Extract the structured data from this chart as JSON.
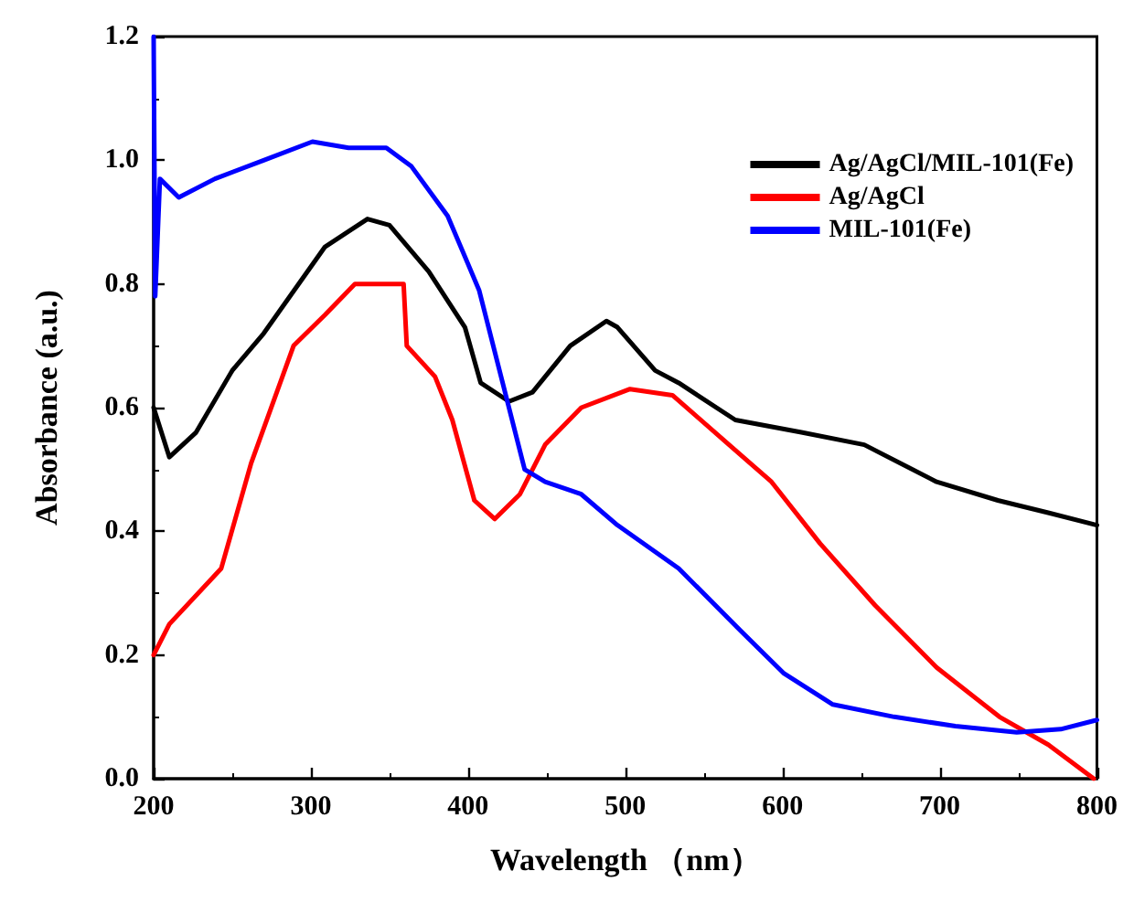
{
  "chart_data": {
    "type": "line",
    "xlabel": "Wavelength （nm）",
    "ylabel": "Absorbance (a.u.)",
    "xlim": [
      200,
      800
    ],
    "xticks": [
      200,
      300,
      400,
      500,
      600,
      700,
      800
    ],
    "ylim": [
      0,
      1.2
    ],
    "yticks": [
      {
        "value": 0,
        "label": "0.0"
      },
      0.2,
      0.4,
      0.6,
      0.8,
      {
        "value": 1,
        "label": "1.0"
      },
      1.2
    ],
    "grid": false,
    "legend": "top right",
    "marker": "none",
    "line_style": "solid",
    "series": [
      {
        "name": "Ag/AgCl/MIL-101(Fe)",
        "color": "#000000",
        "x": [
          200,
          210,
          227,
          250,
          270,
          309,
          336,
          350,
          375,
          398,
          408,
          426,
          441,
          465,
          488,
          495,
          519,
          534,
          570,
          612,
          652,
          698,
          737,
          769,
          800
        ],
        "values": [
          0.6,
          0.52,
          0.56,
          0.66,
          0.72,
          0.86,
          0.905,
          0.895,
          0.82,
          0.73,
          0.64,
          0.61,
          0.625,
          0.7,
          0.74,
          0.73,
          0.66,
          0.64,
          0.58,
          0.56,
          0.54,
          0.48,
          0.45,
          0.43,
          0.41
        ]
      },
      {
        "name": "Ag/AgCl",
        "color": "#ff0000",
        "x": [
          200,
          210,
          243,
          262,
          289,
          309,
          328,
          359,
          361,
          379,
          390,
          404,
          417,
          433,
          449,
          472,
          503,
          530,
          566,
          593,
          624,
          659,
          698,
          738,
          769,
          798
        ],
        "values": [
          0.2,
          0.25,
          0.34,
          0.51,
          0.7,
          0.75,
          0.8,
          0.8,
          0.7,
          0.65,
          0.58,
          0.45,
          0.42,
          0.46,
          0.54,
          0.6,
          0.63,
          0.62,
          0.54,
          0.48,
          0.38,
          0.28,
          0.18,
          0.1,
          0.055,
          0.0
        ]
      },
      {
        "name": "MIL-101(Fe)",
        "color": "#0000ff",
        "x": [
          200,
          201,
          204,
          216,
          239,
          270,
          301,
          324,
          348,
          364,
          387,
          407,
          422,
          436,
          449,
          472,
          495,
          534,
          573,
          601,
          632,
          671,
          710,
          749,
          777,
          800
        ],
        "values": [
          1.2,
          0.78,
          0.97,
          0.94,
          0.97,
          1.0,
          1.03,
          1.02,
          1.02,
          0.99,
          0.91,
          0.79,
          0.64,
          0.5,
          0.48,
          0.46,
          0.41,
          0.34,
          0.24,
          0.17,
          0.12,
          0.1,
          0.085,
          0.075,
          0.08,
          0.095
        ]
      }
    ]
  }
}
